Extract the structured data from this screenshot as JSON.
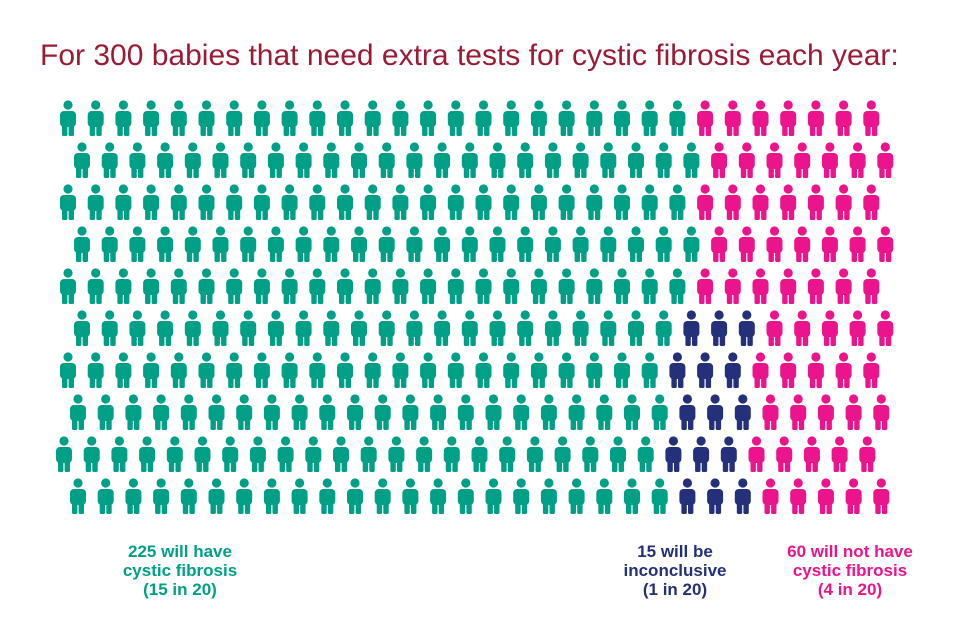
{
  "title": "For 300 babies that need extra tests for cystic fibrosis each year:",
  "legend": {
    "have": {
      "line1": "225 will have",
      "line2": "cystic fibrosis",
      "line3": "(15 in 20)",
      "color": "#00a087"
    },
    "inconclusive": {
      "line1": "15 will be",
      "line2": "inconclusive",
      "line3": "(1 in 20)",
      "color": "#24307a"
    },
    "not": {
      "line1": "60 will not have",
      "line2": "cystic fibrosis",
      "line3": "(4 in 20)",
      "color": "#ec148c"
    }
  },
  "chart_data": {
    "type": "pictogram",
    "total": 300,
    "rows": 10,
    "per_row": 30,
    "categories": [
      "will have cystic fibrosis",
      "will be inconclusive",
      "will not have cystic fibrosis"
    ],
    "values": [
      225,
      15,
      60
    ],
    "colors": [
      "#00a087",
      "#24307a",
      "#ec148c"
    ],
    "row_counts": [
      [
        23,
        0,
        7
      ],
      [
        23,
        0,
        7
      ],
      [
        23,
        0,
        7
      ],
      [
        23,
        0,
        7
      ],
      [
        23,
        0,
        7
      ],
      [
        22,
        3,
        5
      ],
      [
        22,
        3,
        5
      ],
      [
        22,
        3,
        5
      ],
      [
        22,
        3,
        5
      ],
      [
        22,
        3,
        5
      ]
    ]
  }
}
